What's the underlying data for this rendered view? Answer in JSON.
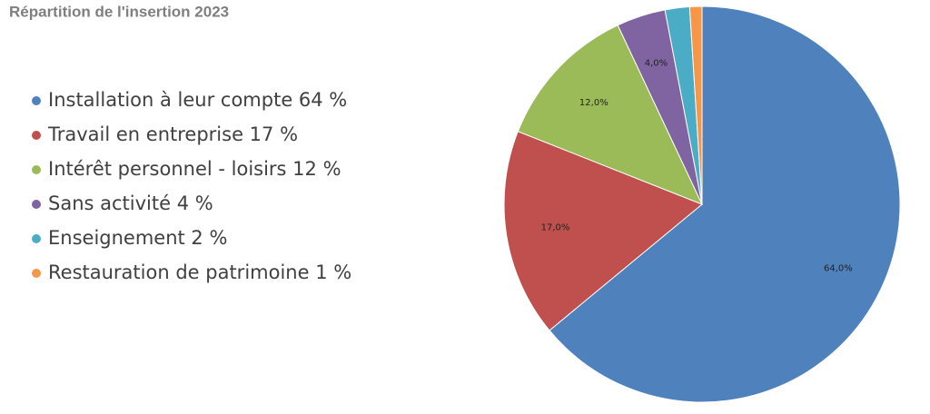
{
  "chart_data": {
    "type": "pie",
    "title": "Répartition de l'insertion 2023",
    "categories": [
      "Installation à leur compte 64 %",
      "Travail en entreprise 17 %",
      "Intérêt personnel - loisirs 12 %",
      "Sans activité 4 %",
      "Enseignement 2 %",
      "Restauration de patrimoine 1 %"
    ],
    "values": [
      64,
      17,
      12,
      4,
      2,
      1
    ],
    "value_labels": [
      "64,0%",
      "17,0%",
      "12,0%",
      "4,0%",
      null,
      null
    ],
    "colors": [
      "#4f81bd",
      "#c0504d",
      "#9bbb59",
      "#8064a2",
      "#4bacc6",
      "#f79646"
    ],
    "legend": "left"
  }
}
